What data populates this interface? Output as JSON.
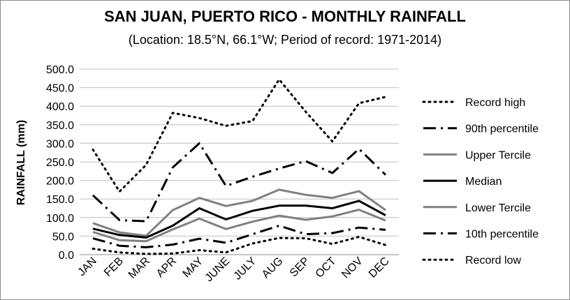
{
  "chart_data": {
    "type": "line",
    "title": "SAN JUAN, PUERTO RICO - MONTHLY RAINFALL",
    "subtitle": "(Location: 18.5°N, 66.1°W; Period of record: 1971-2014)",
    "ylabel": "RAINFALL (mm)",
    "xlabel": "",
    "ylim": [
      0,
      500
    ],
    "ytick_step": 50,
    "ytick_decimals": 1,
    "grid": true,
    "legend_position": "right",
    "categories": [
      "JAN",
      "FEB",
      "MAR",
      "APR",
      "MAY",
      "JUNE",
      "JULY",
      "AUG",
      "SEP",
      "OCT",
      "NOV",
      "DEC"
    ],
    "series": [
      {
        "name": "Record high",
        "color": "#000000",
        "dash": "dotted",
        "width": 3,
        "values": [
          283,
          170,
          242,
          382,
          368,
          347,
          360,
          472,
          385,
          305,
          408,
          425
        ]
      },
      {
        "name": "90th percentile",
        "color": "#000000",
        "dash": "dashdot",
        "width": 3,
        "values": [
          160,
          93,
          90,
          235,
          300,
          185,
          210,
          232,
          252,
          220,
          285,
          215
        ]
      },
      {
        "name": "Upper Tercile",
        "color": "#808080",
        "dash": "solid",
        "width": 3,
        "values": [
          85,
          60,
          51,
          120,
          153,
          131,
          145,
          175,
          161,
          153,
          171,
          120
        ]
      },
      {
        "name": "Median",
        "color": "#000000",
        "dash": "solid",
        "width": 3,
        "values": [
          70,
          53,
          46,
          78,
          125,
          95,
          118,
          132,
          132,
          125,
          145,
          106
        ]
      },
      {
        "name": "Lower Tercile",
        "color": "#808080",
        "dash": "solid",
        "width": 3,
        "values": [
          61,
          39,
          36,
          68,
          97,
          69,
          89,
          105,
          94,
          103,
          121,
          92
        ]
      },
      {
        "name": "10th percentile",
        "color": "#000000",
        "dash": "dashdot",
        "width": 3,
        "values": [
          44,
          24,
          20,
          27,
          43,
          32,
          55,
          78,
          55,
          58,
          73,
          67
        ]
      },
      {
        "name": "Record low",
        "color": "#000000",
        "dash": "dotted",
        "width": 3,
        "values": [
          16,
          6,
          2,
          3,
          12,
          6,
          30,
          45,
          44,
          29,
          48,
          26
        ]
      }
    ]
  }
}
